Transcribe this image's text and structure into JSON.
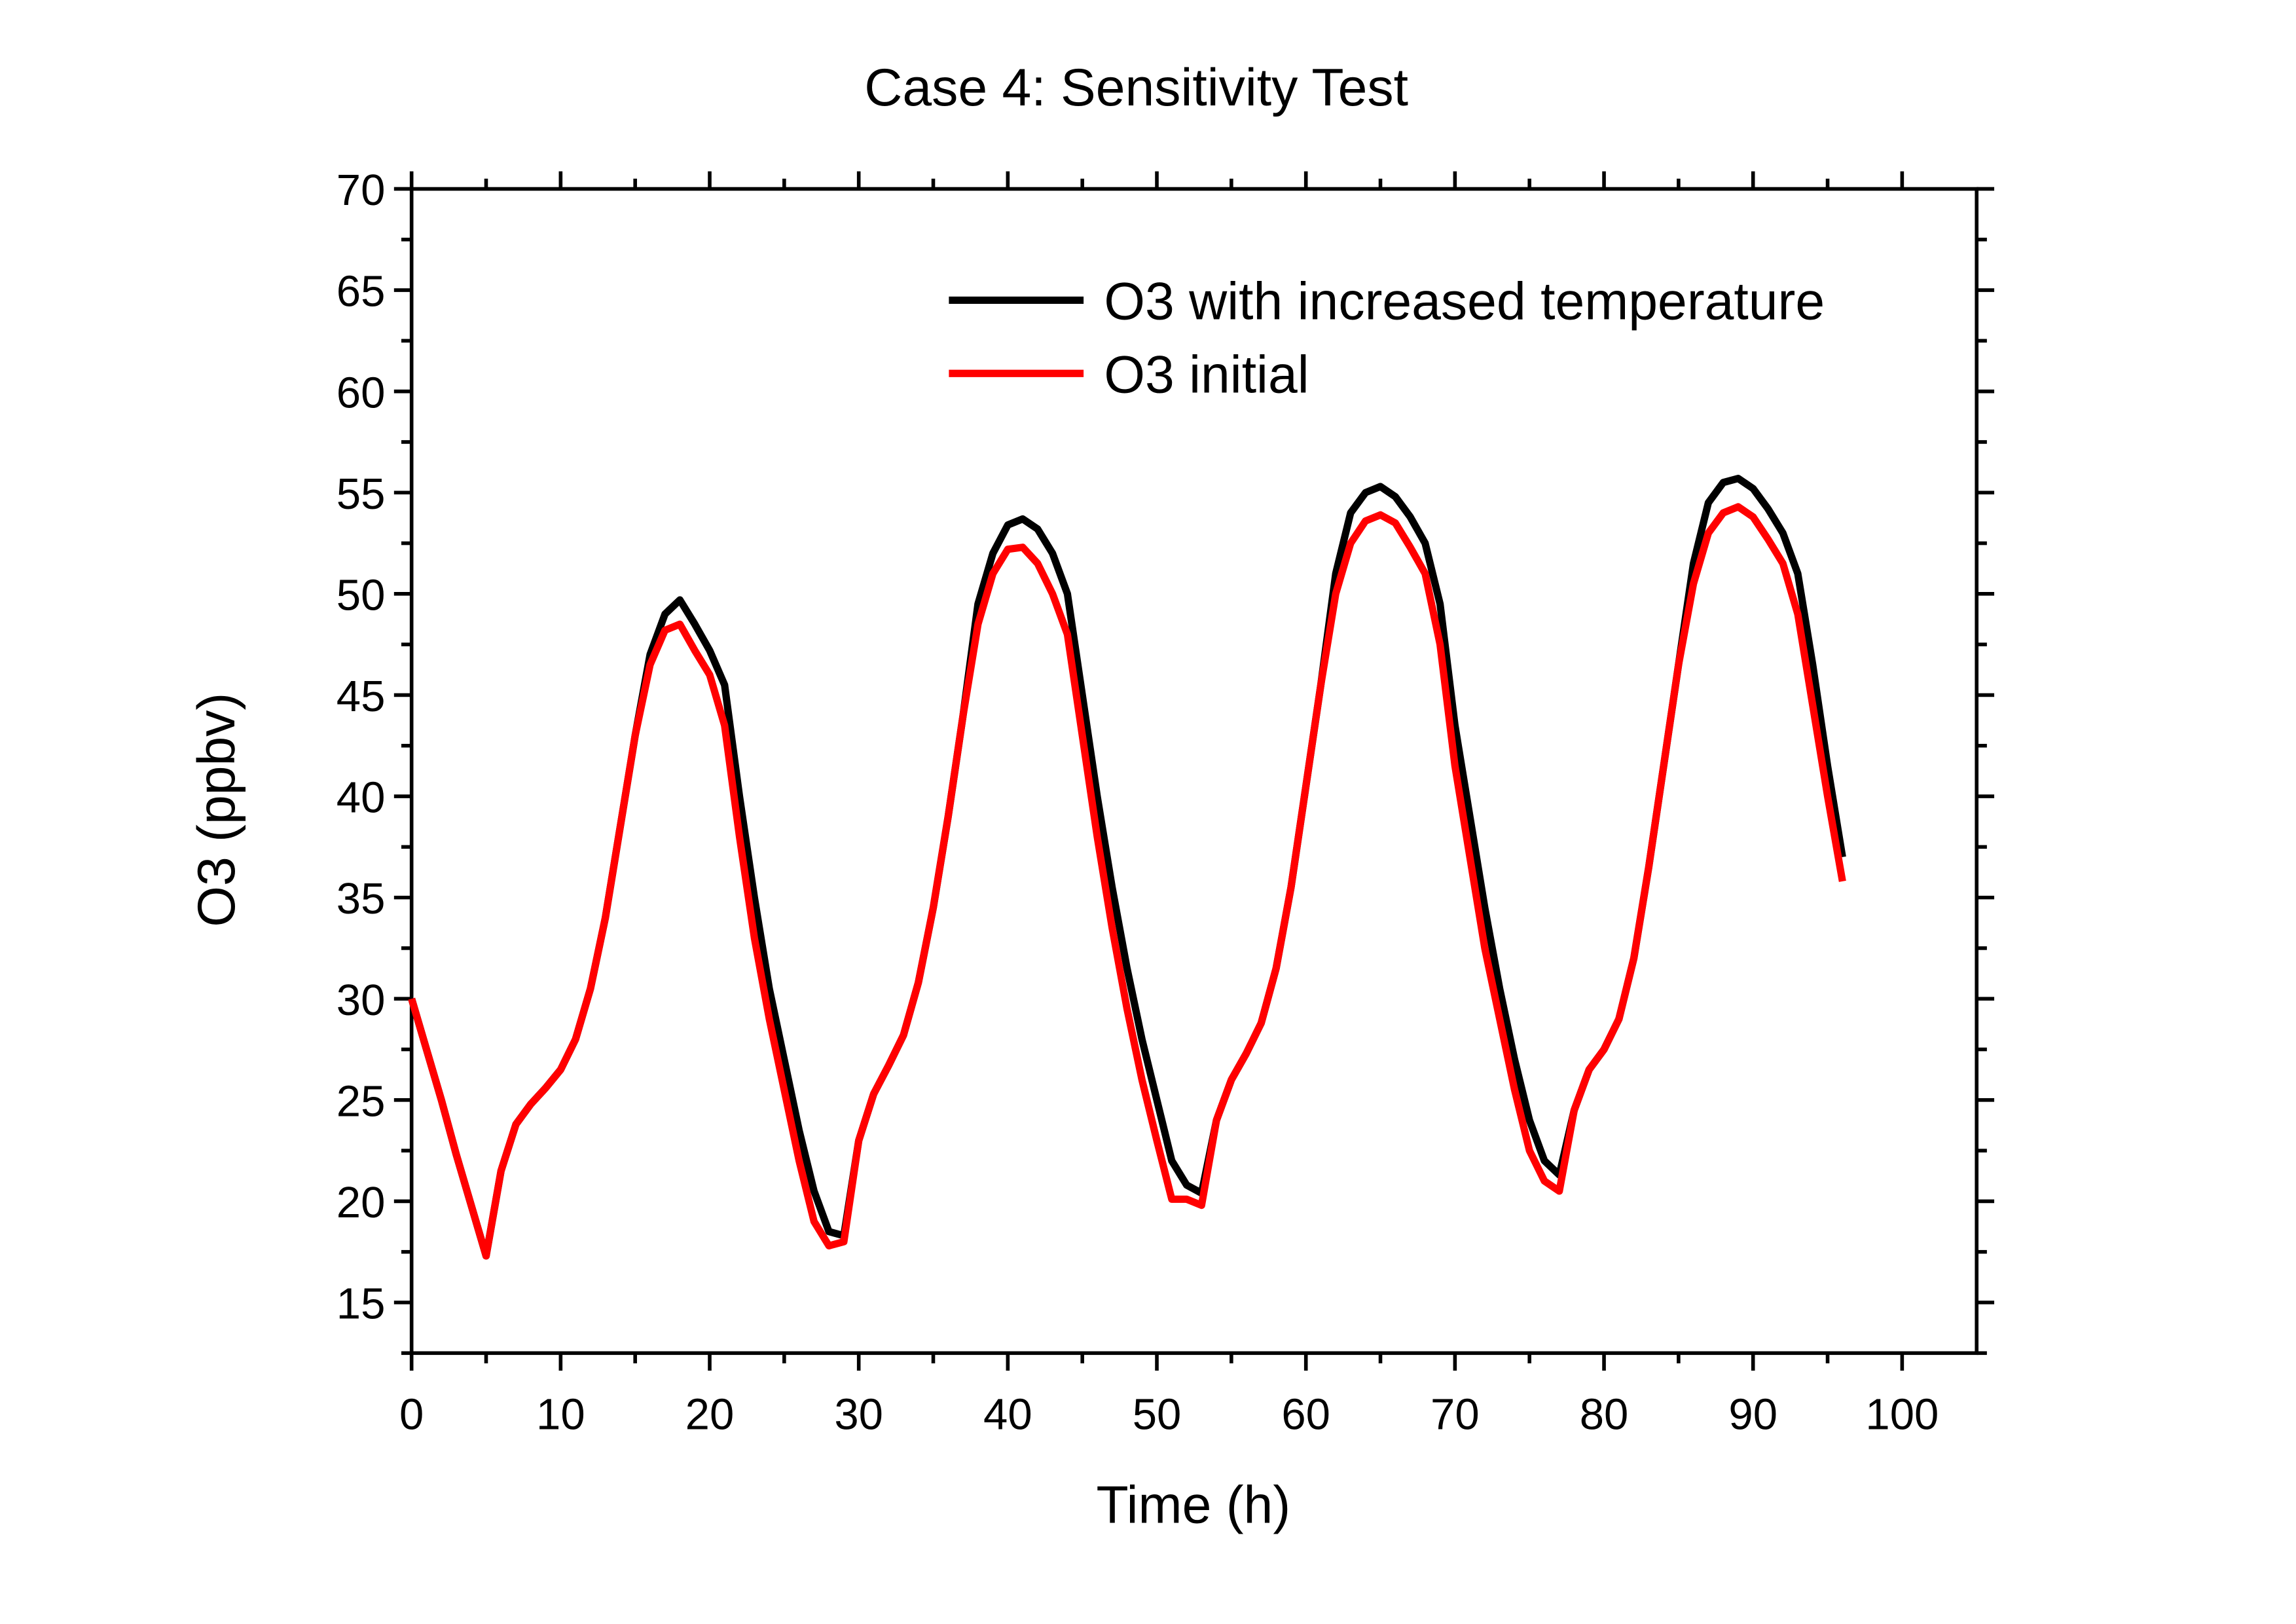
{
  "chart_data": {
    "type": "line",
    "title": "Case 4: Sensitivity Test",
    "x_label": "Time (h)",
    "y_label": "O3 (ppbv)",
    "x": [
      0,
      1,
      2,
      3,
      4,
      5,
      6,
      7,
      8,
      9,
      10,
      11,
      12,
      13,
      14,
      15,
      16,
      17,
      18,
      19,
      20,
      21,
      22,
      23,
      24,
      25,
      26,
      27,
      28,
      29,
      30,
      31,
      32,
      33,
      34,
      35,
      36,
      37,
      38,
      39,
      40,
      41,
      42,
      43,
      44,
      45,
      46,
      47,
      48,
      49,
      50,
      51,
      52,
      53,
      54,
      55,
      56,
      57,
      58,
      59,
      60,
      61,
      62,
      63,
      64,
      65,
      66,
      67,
      68,
      69,
      70,
      71,
      72,
      73,
      74,
      75,
      76,
      77,
      78,
      79,
      80,
      81,
      82,
      83,
      84,
      85,
      86,
      87,
      88,
      89,
      90,
      91,
      92,
      93,
      94,
      95,
      96
    ],
    "series": [
      {
        "name": "O3 with increased temperature",
        "color": "#000000",
        "values": [
          30,
          27.5,
          25,
          22.3,
          19.8,
          17.3,
          21.5,
          23.8,
          24.8,
          25.6,
          26.5,
          28,
          30.5,
          34,
          38.5,
          43,
          47,
          49,
          49.7,
          48.5,
          47.2,
          45.5,
          40,
          35,
          30.5,
          27,
          23.5,
          20.5,
          18.5,
          18.3,
          23,
          25.3,
          26.7,
          28.2,
          30.8,
          34.5,
          39,
          44,
          49.5,
          52,
          53.4,
          53.7,
          53.2,
          52,
          50,
          45,
          40,
          35.5,
          31.5,
          28,
          25,
          22,
          20.8,
          20.4,
          24,
          26,
          27.3,
          28.8,
          31.5,
          35.5,
          40.5,
          45.5,
          51,
          54,
          55,
          55.3,
          54.8,
          53.8,
          52.5,
          49.5,
          43.5,
          39,
          34.5,
          30.5,
          27,
          24,
          22,
          21.3,
          24.5,
          26.5,
          27.5,
          29,
          32,
          36.5,
          41.5,
          46.5,
          51.5,
          54.5,
          55.5,
          55.7,
          55.2,
          54.2,
          53,
          51,
          46.5,
          41.5,
          37
        ]
      },
      {
        "name": "O3 initial",
        "color": "#ff0000",
        "values": [
          30,
          27.5,
          25,
          22.3,
          19.8,
          17.3,
          21.5,
          23.8,
          24.8,
          25.6,
          26.5,
          28,
          30.5,
          34,
          38.5,
          43,
          46.5,
          48.2,
          48.5,
          47.2,
          46,
          43.5,
          38,
          33,
          29,
          25.5,
          22,
          19,
          17.8,
          18,
          23,
          25.3,
          26.7,
          28.2,
          30.8,
          34.5,
          39,
          44,
          48.5,
          51,
          52.2,
          52.3,
          51.5,
          50,
          48,
          43,
          38,
          33.5,
          29.5,
          26,
          23,
          20.1,
          20.1,
          19.8,
          24,
          26,
          27.3,
          28.8,
          31.5,
          35.5,
          40.5,
          45.5,
          50,
          52.5,
          53.6,
          53.9,
          53.5,
          52.3,
          51,
          47.5,
          41.5,
          37,
          32.5,
          29,
          25.5,
          22.5,
          21,
          20.5,
          24.5,
          26.5,
          27.5,
          29,
          32,
          36.5,
          41.5,
          46.5,
          50.5,
          53,
          54,
          54.3,
          53.8,
          52.7,
          51.5,
          49,
          44.5,
          40,
          35.8
        ]
      }
    ],
    "xlim": [
      0,
      105
    ],
    "xticks": [
      0,
      10,
      20,
      30,
      40,
      50,
      60,
      70,
      80,
      90,
      100
    ],
    "ylim": [
      12.5,
      70
    ],
    "yticks": [
      15,
      20,
      25,
      30,
      35,
      40,
      45,
      50,
      55,
      60,
      65,
      70
    ],
    "legend": "upper right",
    "grid": false
  }
}
